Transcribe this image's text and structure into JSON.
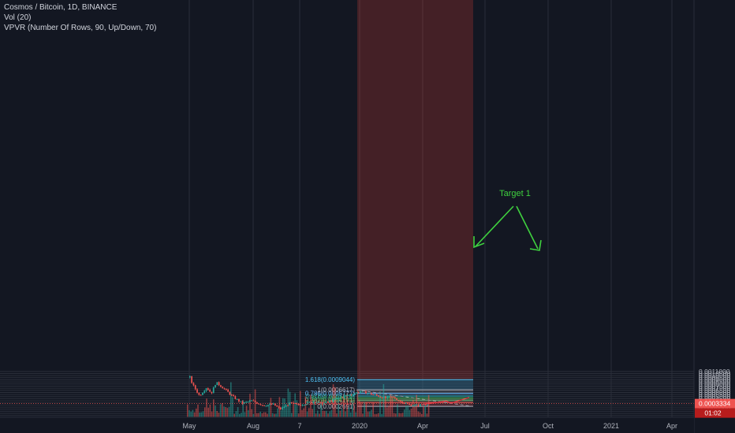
{
  "legend": {
    "symbol_line": "Cosmos / Bitcoin, 1D, BINANCE",
    "volume_line": "Vol (20)",
    "vpvr_line": "VPVR (Number Of Rows, 90, Up/Down, 70)"
  },
  "colors": {
    "background": "#131722",
    "grid": "#2a2e39",
    "axis_text": "#b2b5be",
    "up": "#26a69a",
    "down": "#ef5350",
    "vpvr_up": "#3f9d48",
    "vpvr_down": "#c62828",
    "arrow": "#3fd13f",
    "target_text": "#3fd13f",
    "projection": "#f23645",
    "price_tag": "#ef5350"
  },
  "chart_data": {
    "type": "candlestick",
    "x_ticks": [
      "May",
      "Aug",
      "7",
      "2020",
      "Apr",
      "Jul",
      "Oct",
      "2021",
      "Apr"
    ],
    "y_ticks": [
      "0.0000500",
      "0.0001000",
      "0.0001500",
      "0.0002000",
      "0.0002500",
      "0.0003000",
      "0.0003500",
      "0.0004000",
      "0.0004500",
      "0.0005000",
      "0.0005500",
      "0.0006000",
      "0.0006500",
      "0.0007000",
      "0.0007500",
      "0.0008000",
      "0.0008500",
      "0.0009000",
      "0.0009500",
      "0.0010000",
      "0.0010500",
      "0.0011000"
    ],
    "ylim": [
      7.5e-06,
      0.0011115
    ],
    "last_price": "0.0003334",
    "countdown": "01:02",
    "price_path": [
      {
        "t": 0.0,
        "v": 0.00096
      },
      {
        "t": 0.01,
        "v": 0.0008
      },
      {
        "t": 0.04,
        "v": 0.00052
      },
      {
        "t": 0.07,
        "v": 0.00072
      },
      {
        "t": 0.09,
        "v": 0.00058
      },
      {
        "t": 0.11,
        "v": 0.00084
      },
      {
        "t": 0.15,
        "v": 0.00066
      },
      {
        "t": 0.18,
        "v": 0.0005
      },
      {
        "t": 0.22,
        "v": 0.00034
      },
      {
        "t": 0.26,
        "v": 0.0004
      },
      {
        "t": 0.31,
        "v": 0.00029
      },
      {
        "t": 0.35,
        "v": 0.00032
      },
      {
        "t": 0.38,
        "v": 0.0002
      },
      {
        "t": 0.42,
        "v": 0.00034
      },
      {
        "t": 0.46,
        "v": 0.0003
      },
      {
        "t": 0.52,
        "v": 0.00038
      },
      {
        "t": 0.56,
        "v": 0.00033
      },
      {
        "t": 0.6,
        "v": 0.00041
      },
      {
        "t": 0.64,
        "v": 0.0005
      },
      {
        "t": 0.68,
        "v": 0.00055
      },
      {
        "t": 0.72,
        "v": 0.00063
      },
      {
        "t": 0.75,
        "v": 0.00058
      },
      {
        "t": 0.78,
        "v": 0.00054
      },
      {
        "t": 0.82,
        "v": 0.00046
      },
      {
        "t": 0.85,
        "v": 0.0005
      },
      {
        "t": 0.88,
        "v": 0.0004
      },
      {
        "t": 0.92,
        "v": 0.00031
      },
      {
        "t": 0.96,
        "v": 0.00029
      },
      {
        "t": 1.0,
        "v": 0.000333
      }
    ],
    "fibonacci": {
      "low": 0.0002691,
      "high": 0.0006617,
      "levels": [
        {
          "ratio": 0,
          "label": "0(0.0002691)",
          "price": 0.0002691,
          "color": "#b2b5be"
        },
        {
          "ratio": 0.236,
          "label": "0.236(0.0003618)",
          "price": 0.0003618,
          "color": "#ef5350"
        },
        {
          "ratio": 0.382,
          "label": "0.382(0.0004191)",
          "price": 0.0004191,
          "color": "#81c784"
        },
        {
          "ratio": 0.5,
          "label": "0.5(0.0004654)",
          "price": 0.0004654,
          "color": "#4caf50"
        },
        {
          "ratio": 0.618,
          "label": "0.618(0.0005118)",
          "price": 0.0005118,
          "color": "#26a69a"
        },
        {
          "ratio": 0.786,
          "label": "0.786(0.0005777)",
          "price": 0.0005777,
          "color": "#64b5f6"
        },
        {
          "ratio": 1,
          "label": "1(0.0006617)",
          "price": 0.0006617,
          "color": "#b2b5be"
        },
        {
          "ratio": 1.618,
          "label": "1.618(0.0009044)",
          "price": 0.0009044,
          "color": "#4fc3f7"
        }
      ]
    },
    "annotations": [
      {
        "text": "Target 1"
      }
    ]
  }
}
